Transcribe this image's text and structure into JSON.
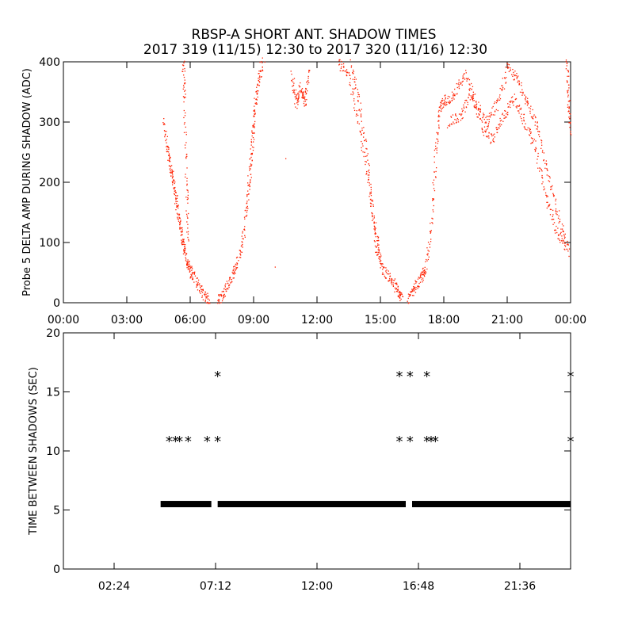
{
  "title": "RBSP-A SHORT ANT. SHADOW TIMES",
  "subtitle": "2017 319 (11/15) 12:30 to 2017 320 (11/16) 12:30",
  "chart_data": [
    {
      "type": "scatter",
      "ylabel": "Probe 5 DELTA AMP DURING SHADOW (ADC)",
      "xlabel": "",
      "xlim": [
        0,
        24
      ],
      "ylim": [
        0,
        400
      ],
      "x_tick_labels": [
        "00:00",
        "03:00",
        "06:00",
        "09:00",
        "12:00",
        "15:00",
        "18:00",
        "21:00",
        "00:00"
      ],
      "x_ticks": [
        0,
        3,
        6,
        9,
        12,
        15,
        18,
        21,
        24
      ],
      "y_ticks": [
        0,
        100,
        200,
        300,
        400
      ],
      "grid": false,
      "color": "#ff2000",
      "series": [
        {
          "segments": [
            [
              [
                4.7,
                300
              ],
              [
                5.0,
                240
              ],
              [
                5.3,
                170
              ],
              [
                5.6,
                110
              ],
              [
                5.9,
                60
              ],
              [
                6.3,
                35
              ],
              [
                6.6,
                15
              ],
              [
                6.9,
                3
              ]
            ],
            [
              [
                4.9,
                260
              ],
              [
                5.2,
                200
              ],
              [
                5.5,
                130
              ],
              [
                5.8,
                70
              ],
              [
                6.1,
                40
              ]
            ],
            [
              [
                5.65,
                400
              ],
              [
                5.7,
                340
              ],
              [
                5.8,
                200
              ],
              [
                5.9,
                100
              ]
            ],
            [
              [
                7.3,
                2
              ],
              [
                7.6,
                20
              ],
              [
                7.9,
                40
              ],
              [
                8.2,
                65
              ],
              [
                8.5,
                110
              ],
              [
                8.8,
                200
              ],
              [
                9.0,
                300
              ],
              [
                9.3,
                400
              ]
            ],
            [
              [
                8.6,
                150
              ],
              [
                8.9,
                260
              ],
              [
                9.1,
                350
              ],
              [
                9.5,
                410
              ]
            ],
            [
              [
                10.8,
                380
              ],
              [
                11.0,
                330
              ],
              [
                11.2,
                360
              ],
              [
                11.4,
                330
              ],
              [
                11.6,
                390
              ]
            ],
            [
              [
                13.0,
                400
              ],
              [
                13.5,
                380
              ],
              [
                14.0,
                290
              ],
              [
                14.5,
                180
              ],
              [
                14.8,
                90
              ],
              [
                15.1,
                55
              ],
              [
                15.5,
                40
              ],
              [
                15.8,
                20
              ],
              [
                16.0,
                5
              ]
            ],
            [
              [
                13.6,
                400
              ],
              [
                14.0,
                330
              ],
              [
                14.4,
                230
              ],
              [
                14.7,
                130
              ],
              [
                15.0,
                70
              ]
            ],
            [
              [
                16.3,
                5
              ],
              [
                16.6,
                25
              ],
              [
                16.9,
                40
              ],
              [
                17.1,
                55
              ],
              [
                17.4,
                130
              ],
              [
                17.6,
                250
              ],
              [
                17.8,
                320
              ],
              [
                18.0,
                340
              ]
            ],
            [
              [
                18.0,
                330
              ],
              [
                18.5,
                350
              ],
              [
                19.0,
                380
              ],
              [
                19.5,
                330
              ],
              [
                20.0,
                300
              ],
              [
                20.5,
                330
              ],
              [
                21.0,
                390
              ],
              [
                21.5,
                370
              ],
              [
                22.0,
                330
              ],
              [
                22.5,
                280
              ],
              [
                23.0,
                200
              ],
              [
                23.5,
                130
              ],
              [
                24.0,
                80
              ]
            ],
            [
              [
                18.2,
                300
              ],
              [
                18.8,
                310
              ],
              [
                19.3,
                350
              ],
              [
                19.8,
                290
              ],
              [
                20.3,
                270
              ],
              [
                20.8,
                310
              ],
              [
                21.3,
                340
              ],
              [
                21.8,
                300
              ],
              [
                22.3,
                260
              ],
              [
                22.8,
                180
              ],
              [
                23.3,
                120
              ],
              [
                23.8,
                90
              ]
            ],
            [
              [
                23.8,
                400
              ],
              [
                23.9,
                330
              ],
              [
                24.0,
                280
              ]
            ]
          ],
          "isolated_points": [
            [
              10.5,
              240
            ],
            [
              10.0,
              60
            ]
          ]
        }
      ]
    },
    {
      "type": "scatter",
      "ylabel": "TIME BETWEEN SHADOWS (SEC)",
      "xlabel": "",
      "xlim": [
        0,
        24
      ],
      "ylim": [
        0,
        20
      ],
      "x_tick_labels": [
        "02:24",
        "07:12",
        "12:00",
        "16:48",
        "21:36"
      ],
      "x_ticks": [
        2.4,
        7.2,
        12.0,
        16.8,
        21.6
      ],
      "y_ticks": [
        0,
        5,
        10,
        15,
        20
      ],
      "grid": false,
      "color": "#000000",
      "marker": "*",
      "series": [
        {
          "baseline_value": 5.5,
          "baseline_ranges": [
            [
              4.6,
              7.0
            ],
            [
              7.3,
              16.2
            ],
            [
              16.5,
              24.0
            ]
          ],
          "points": [
            [
              5.0,
              11
            ],
            [
              5.3,
              11
            ],
            [
              5.5,
              11
            ],
            [
              5.9,
              11
            ],
            [
              6.8,
              11
            ],
            [
              7.3,
              11
            ],
            [
              7.3,
              16.5
            ],
            [
              15.9,
              16.5
            ],
            [
              16.4,
              16.5
            ],
            [
              17.2,
              16.5
            ],
            [
              15.9,
              11
            ],
            [
              16.4,
              11
            ],
            [
              17.2,
              11
            ],
            [
              17.4,
              11
            ],
            [
              17.6,
              11
            ],
            [
              24.0,
              16.5
            ],
            [
              24.0,
              11
            ]
          ]
        }
      ]
    }
  ]
}
